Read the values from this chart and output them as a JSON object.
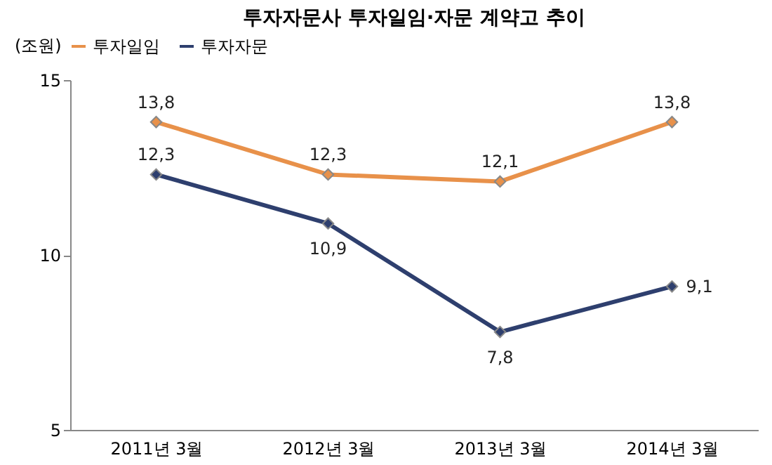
{
  "chart_data": {
    "type": "line",
    "title": "투자자문사 투자일임·자문 계약고 추이",
    "ylabel": "(조원)",
    "categories": [
      "2011년 3월",
      "2012년 3월",
      "2013년 3월",
      "2014년 3월"
    ],
    "series": [
      {
        "name": "투자일임",
        "color": "#e8914a",
        "values": [
          13.8,
          12.3,
          12.1,
          13.8
        ],
        "value_labels": [
          "13,8",
          "12,3",
          "12,1",
          "13,8"
        ]
      },
      {
        "name": "투자자문",
        "color": "#2e3f6e",
        "values": [
          12.3,
          10.9,
          7.8,
          9.1
        ],
        "value_labels": [
          "12,3",
          "10,9",
          "7,8",
          "9,1"
        ]
      }
    ],
    "ylim": [
      5,
      15
    ],
    "yticks": [
      5,
      10,
      15
    ],
    "legend": "top",
    "marker": "diamond",
    "line_style": "solid"
  }
}
